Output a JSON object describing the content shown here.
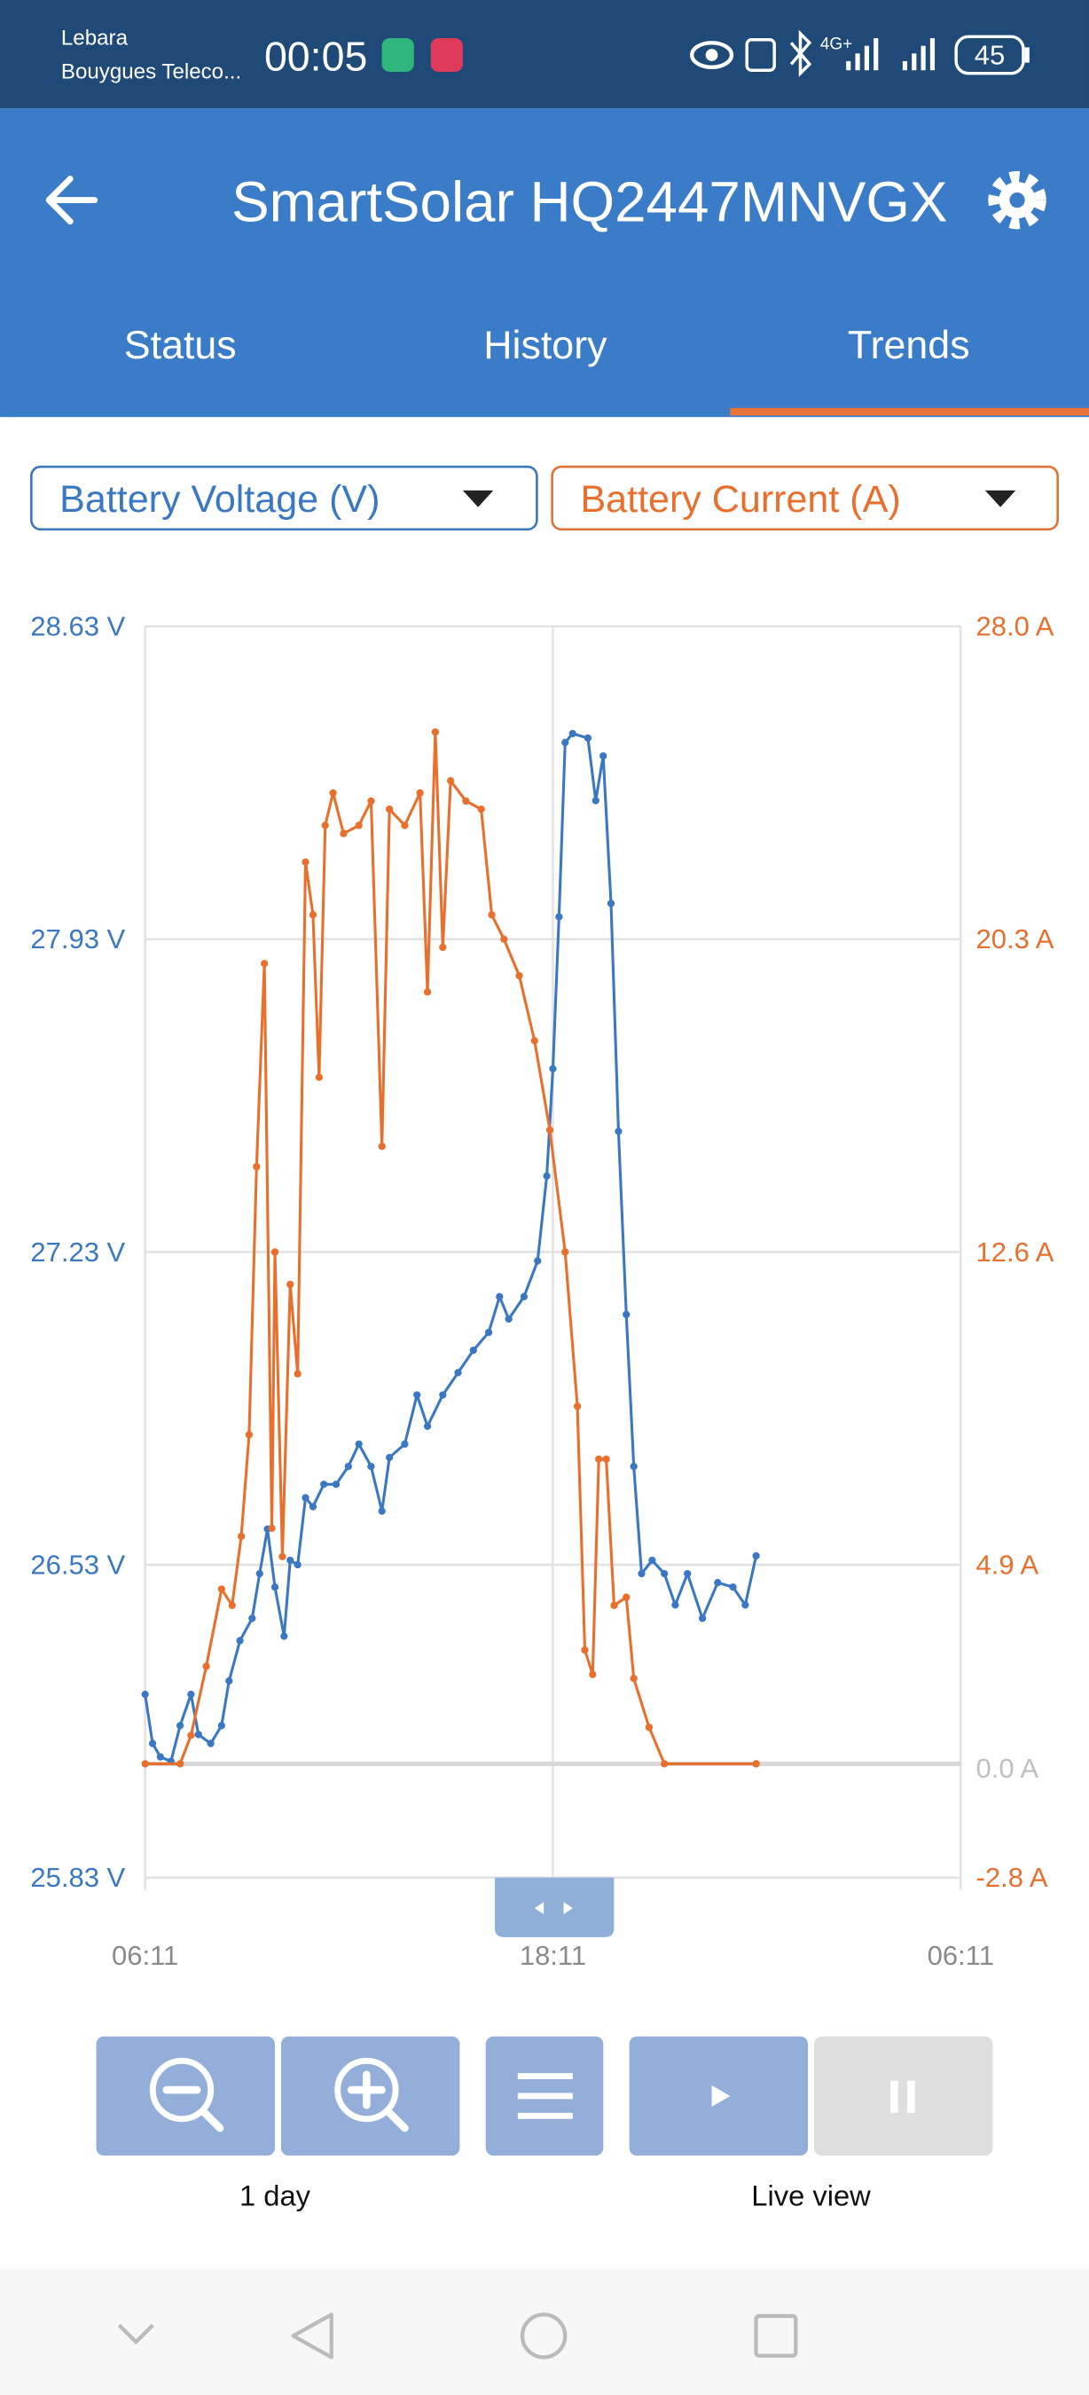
{
  "status_bar": {
    "carrier": "Lebara",
    "network": "Bouygues Teleco...",
    "time": "00:05",
    "network_type": "4G+",
    "battery": "45"
  },
  "header": {
    "title": "SmartSolar HQ2447MNVGX"
  },
  "tabs": [
    "Status",
    "History",
    "Trends"
  ],
  "chart_data": {
    "type": "line",
    "xlim": [
      0,
      24
    ],
    "xticks": [
      {
        "value": 0,
        "label": "06:11"
      },
      {
        "value": 12,
        "label": "18:11"
      },
      {
        "value": 24,
        "label": "06:11"
      }
    ],
    "ylim": [
      25.83,
      28.63
    ],
    "yticks": [
      {
        "value": 25.83,
        "label": "25.83 V"
      },
      {
        "value": 26.53,
        "label": "26.53 V"
      },
      {
        "value": 27.23,
        "label": "27.23 V"
      },
      {
        "value": 27.93,
        "label": "27.93 V"
      },
      {
        "value": 28.63,
        "label": "28.63 V"
      }
    ],
    "y2lim": [
      -2.8,
      28.0
    ],
    "y2ticks": [
      {
        "value": -2.8,
        "label": "-2.8 A"
      },
      {
        "value": 0.0,
        "label": "0.0 A"
      },
      {
        "value": 4.9,
        "label": "4.9 A"
      },
      {
        "value": 12.6,
        "label": "12.6 A"
      },
      {
        "value": 20.3,
        "label": "20.3 A"
      },
      {
        "value": 28.0,
        "label": "28.0 A"
      }
    ],
    "grid": true,
    "series": [
      {
        "name": "Battery Voltage (V)",
        "color": "#3b78c3",
        "x": [
          0,
          0.22,
          0.45,
          0.76,
          1.03,
          1.35,
          1.57,
          1.93,
          2.25,
          2.47,
          2.79,
          3.15,
          3.37,
          3.6,
          3.82,
          4.09,
          4.27,
          4.49,
          4.72,
          4.94,
          5.26,
          5.62,
          5.98,
          6.29,
          6.65,
          6.97,
          7.19,
          7.64,
          8.0,
          8.31,
          8.76,
          9.21,
          9.66,
          10.11,
          10.43,
          10.7,
          11.15,
          11.55,
          11.82,
          12,
          12.18,
          12.36,
          12.58,
          13.03,
          13.26,
          13.48,
          13.71,
          13.93,
          14.16,
          14.38,
          14.61,
          14.92,
          15.28,
          15.6,
          15.96,
          16.4,
          16.85,
          17.3,
          17.66,
          17.98
        ],
        "values": [
          26.24,
          26.13,
          26.1,
          26.09,
          26.17,
          26.24,
          26.15,
          26.13,
          26.17,
          26.27,
          26.36,
          26.41,
          26.51,
          26.61,
          26.48,
          26.37,
          26.54,
          26.53,
          26.68,
          26.66,
          26.71,
          26.71,
          26.75,
          26.8,
          26.75,
          26.65,
          26.77,
          26.8,
          26.91,
          26.84,
          26.91,
          26.96,
          27.01,
          27.05,
          27.13,
          27.08,
          27.13,
          27.21,
          27.4,
          27.64,
          27.98,
          28.37,
          28.39,
          28.38,
          28.24,
          28.34,
          28.01,
          27.5,
          27.09,
          26.75,
          26.51,
          26.54,
          26.51,
          26.44,
          26.51,
          26.41,
          26.49,
          26.48,
          26.44,
          26.55
        ]
      },
      {
        "name": "Battery Current (A)",
        "color": "#e86f2c",
        "axis": "y2",
        "x": [
          0,
          1.03,
          1.35,
          1.8,
          2.25,
          2.56,
          2.83,
          3.06,
          3.28,
          3.51,
          3.73,
          3.82,
          4.04,
          4.27,
          4.49,
          4.72,
          4.94,
          5.12,
          5.3,
          5.53,
          5.84,
          6.29,
          6.65,
          6.97,
          7.19,
          7.64,
          8.09,
          8.31,
          8.54,
          8.76,
          8.99,
          9.44,
          9.89,
          10.2,
          10.56,
          11.01,
          11.46,
          11.91,
          12.36,
          12.72,
          12.94,
          13.17,
          13.35,
          13.57,
          13.8,
          14.16,
          14.38,
          14.83,
          15.28,
          17.98
        ],
        "values": [
          0.0,
          0.0,
          0.7,
          2.4,
          4.3,
          3.9,
          5.6,
          8.1,
          14.7,
          19.7,
          5.8,
          12.6,
          5.1,
          11.8,
          9.6,
          22.2,
          20.9,
          16.9,
          23.1,
          23.9,
          22.9,
          23.1,
          23.7,
          15.2,
          23.5,
          23.1,
          23.9,
          19.0,
          25.4,
          20.1,
          24.2,
          23.7,
          23.5,
          20.9,
          20.3,
          19.4,
          17.8,
          15.6,
          12.6,
          8.8,
          2.8,
          2.2,
          7.5,
          7.5,
          3.9,
          4.1,
          2.1,
          0.9,
          0.0,
          0.0
        ]
      }
    ]
  },
  "controls": {
    "zoom_label": "1 day",
    "live_label": "Live view"
  }
}
